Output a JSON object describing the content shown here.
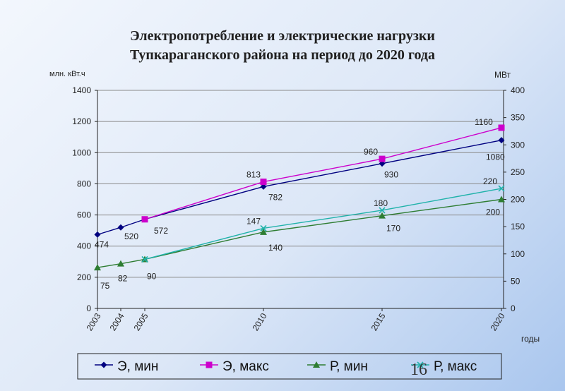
{
  "slide": {
    "title_line1": "Электропотребление и электрические нагрузки",
    "title_line2": "Тупкараганского района на период до 2020 года",
    "page_number": "16"
  },
  "chart_data": {
    "type": "line",
    "x": [
      2003,
      2004,
      2005,
      2010,
      2015,
      2020
    ],
    "x_tick_labels": [
      "2003",
      "2004",
      "2005",
      "2010",
      "2015",
      "2020"
    ],
    "xlabel": "годы",
    "ylabel_left": "млн. кВт.ч",
    "ylabel_right": "МВт",
    "ylim_left": [
      0,
      1400
    ],
    "ylim_right": [
      0,
      400
    ],
    "yticks_left": [
      0,
      200,
      400,
      600,
      800,
      1000,
      1200,
      1400
    ],
    "yticks_right": [
      0,
      50,
      100,
      150,
      200,
      250,
      300,
      350,
      400
    ],
    "grid": "horizontal major lines",
    "legend_position": "bottom",
    "series": [
      {
        "name": "Э, мин",
        "axis": "left",
        "color": "#000080",
        "marker": "diamond",
        "x": [
          2003,
          2004,
          2005,
          2010,
          2015,
          2020
        ],
        "values": [
          474,
          520,
          572,
          782,
          930,
          1080
        ],
        "labels": [
          "474",
          "520",
          "572",
          "782",
          "930",
          "1080"
        ]
      },
      {
        "name": "Э, макс",
        "axis": "left",
        "color": "#cc00cc",
        "marker": "square",
        "x": [
          2005,
          2010,
          2015,
          2020
        ],
        "values": [
          572,
          813,
          960,
          1160
        ],
        "labels": [
          "",
          "813",
          "960",
          "1160"
        ]
      },
      {
        "name": "Р, мин",
        "axis": "right",
        "color": "#2e7d32",
        "marker": "triangle",
        "x": [
          2003,
          2004,
          2005,
          2010,
          2015,
          2020
        ],
        "values": [
          75,
          82,
          90,
          140,
          170,
          200
        ],
        "labels": [
          "75",
          "82",
          "90",
          "140",
          "170",
          "200"
        ]
      },
      {
        "name": "Р, макс",
        "axis": "right",
        "color": "#20b2aa",
        "marker": "x",
        "x": [
          2005,
          2010,
          2015,
          2020
        ],
        "values": [
          90,
          147,
          180,
          220
        ],
        "labels": [
          "",
          "147",
          "180",
          "220"
        ]
      }
    ]
  }
}
